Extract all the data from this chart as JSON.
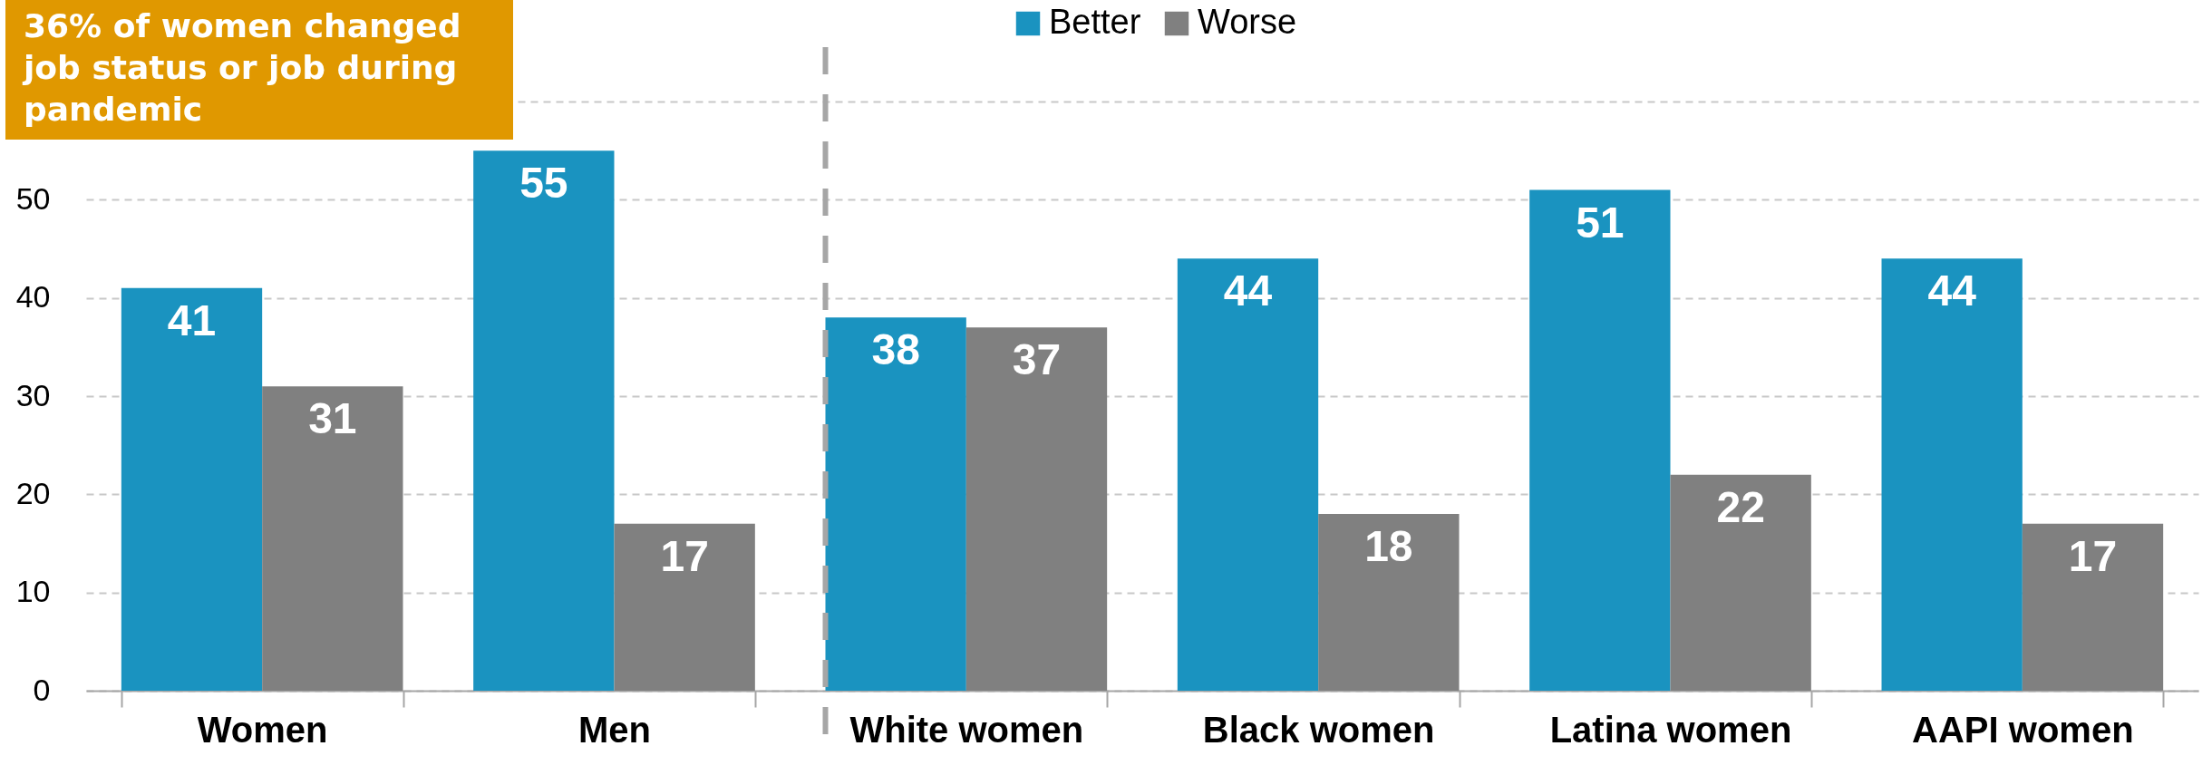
{
  "chart_data": {
    "type": "bar",
    "annotations": [
      "36% of women changed job status or job during pandemic"
    ],
    "categories": [
      "Women",
      "Men",
      "White women",
      "Black women",
      "Latina women",
      "AAPI women"
    ],
    "series": [
      {
        "name": "Better",
        "color": "#1a93c0",
        "values": [
          41,
          55,
          38,
          44,
          51,
          44
        ]
      },
      {
        "name": "Worse",
        "color": "#808080",
        "values": [
          31,
          17,
          37,
          18,
          22,
          17
        ]
      }
    ],
    "ylim": [
      0,
      60
    ],
    "yticks": [
      0,
      10,
      20,
      30,
      40,
      50,
      {
        "value": 60,
        "label": null
      }
    ],
    "grid": "y",
    "legend": "top",
    "data_labels": true,
    "ref_lines": [
      {
        "axis": "x",
        "value": "White women",
        "line_style": "dashed",
        "color": "#a6a6a6"
      }
    ]
  }
}
